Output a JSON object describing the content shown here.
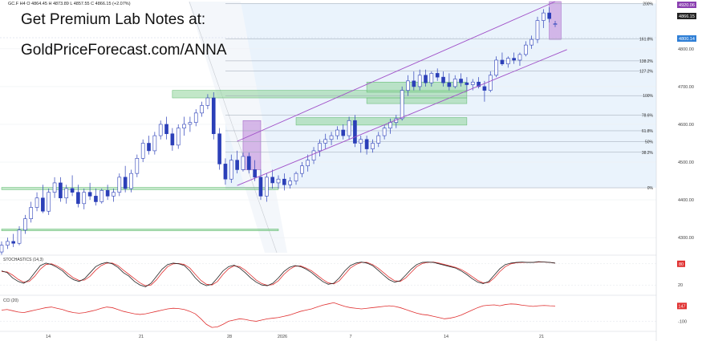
{
  "header": {
    "ohlc_text": "GC.F  H4  O 4864.45  H 4873.89  L 4857.55  C 4866.15  (+2.07%)",
    "promo_line1": "Get Premium Lab Notes at:",
    "promo_line2": "GoldPriceForecast.com/ANNA"
  },
  "colors": {
    "candle_up": "#2b3fb8",
    "candle_down": "#2b3fb8",
    "channel": "#a050c8",
    "zone_green": "#8fd49a",
    "zone_purple": "#c79be0",
    "fib_bg": "#eaf3fc",
    "stoch_k": "#222222",
    "stoch_d": "#e03030",
    "cci": "#e03030",
    "price_badge_current": "#222222",
    "price_badge_high": "#8a3fb0",
    "price_badge_level": "#2f7fd6",
    "badge_red": "#e03030"
  },
  "chart_data": {
    "type": "candlestick",
    "symbol": "GC.F",
    "timeframe": "H4",
    "x_ticks": [
      "14",
      "21",
      "28",
      "2026",
      "7",
      "14",
      "21"
    ],
    "price_axis_ticks": [
      4300,
      4400,
      4500,
      4600,
      4700,
      4800
    ],
    "price_axis_tick_labels": [
      "4300.00",
      "4400.00",
      "4500.00",
      "4600.00",
      "4700.00",
      "4800.00"
    ],
    "ylim": [
      4260,
      4925
    ],
    "price_badges": {
      "fib_top": "4920.06",
      "current": "4866.15",
      "level": "4800.14"
    },
    "fib_levels": [
      {
        "label": "200%",
        "price": 4920
      },
      {
        "label": "161.8%",
        "price": 4826
      },
      {
        "label": "138.2%",
        "price": 4768
      },
      {
        "label": "127.2%",
        "price": 4741
      },
      {
        "label": "100%",
        "price": 4676
      },
      {
        "label": "78.6%",
        "price": 4624
      },
      {
        "label": "61.8%",
        "price": 4583
      },
      {
        "label": "50%",
        "price": 4554
      },
      {
        "label": "38.2%",
        "price": 4526
      },
      {
        "label": "0%",
        "price": 4432
      }
    ],
    "candles": [
      {
        "o": 4262,
        "h": 4290,
        "l": 4255,
        "c": 4280
      },
      {
        "o": 4280,
        "h": 4300,
        "l": 4270,
        "c": 4290
      },
      {
        "o": 4290,
        "h": 4310,
        "l": 4275,
        "c": 4285
      },
      {
        "o": 4285,
        "h": 4330,
        "l": 4280,
        "c": 4320
      },
      {
        "o": 4320,
        "h": 4360,
        "l": 4310,
        "c": 4350
      },
      {
        "o": 4350,
        "h": 4395,
        "l": 4340,
        "c": 4380
      },
      {
        "o": 4380,
        "h": 4420,
        "l": 4370,
        "c": 4405
      },
      {
        "o": 4405,
        "h": 4440,
        "l": 4365,
        "c": 4370
      },
      {
        "o": 4370,
        "h": 4430,
        "l": 4360,
        "c": 4420
      },
      {
        "o": 4420,
        "h": 4460,
        "l": 4405,
        "c": 4445
      },
      {
        "o": 4445,
        "h": 4460,
        "l": 4395,
        "c": 4405
      },
      {
        "o": 4405,
        "h": 4440,
        "l": 4390,
        "c": 4430
      },
      {
        "o": 4430,
        "h": 4465,
        "l": 4410,
        "c": 4420
      },
      {
        "o": 4420,
        "h": 4440,
        "l": 4380,
        "c": 4390
      },
      {
        "o": 4390,
        "h": 4430,
        "l": 4375,
        "c": 4420
      },
      {
        "o": 4420,
        "h": 4445,
        "l": 4400,
        "c": 4410
      },
      {
        "o": 4410,
        "h": 4430,
        "l": 4385,
        "c": 4395
      },
      {
        "o": 4395,
        "h": 4430,
        "l": 4390,
        "c": 4425
      },
      {
        "o": 4425,
        "h": 4440,
        "l": 4400,
        "c": 4410
      },
      {
        "o": 4410,
        "h": 4430,
        "l": 4395,
        "c": 4420
      },
      {
        "o": 4420,
        "h": 4470,
        "l": 4410,
        "c": 4460
      },
      {
        "o": 4460,
        "h": 4490,
        "l": 4420,
        "c": 4430
      },
      {
        "o": 4430,
        "h": 4480,
        "l": 4420,
        "c": 4470
      },
      {
        "o": 4470,
        "h": 4520,
        "l": 4460,
        "c": 4510
      },
      {
        "o": 4510,
        "h": 4560,
        "l": 4500,
        "c": 4550
      },
      {
        "o": 4550,
        "h": 4570,
        "l": 4520,
        "c": 4530
      },
      {
        "o": 4530,
        "h": 4580,
        "l": 4520,
        "c": 4570
      },
      {
        "o": 4570,
        "h": 4610,
        "l": 4560,
        "c": 4600
      },
      {
        "o": 4600,
        "h": 4620,
        "l": 4560,
        "c": 4575
      },
      {
        "o": 4575,
        "h": 4590,
        "l": 4530,
        "c": 4545
      },
      {
        "o": 4545,
        "h": 4600,
        "l": 4535,
        "c": 4590
      },
      {
        "o": 4590,
        "h": 4620,
        "l": 4570,
        "c": 4600
      },
      {
        "o": 4600,
        "h": 4620,
        "l": 4580,
        "c": 4605
      },
      {
        "o": 4605,
        "h": 4640,
        "l": 4595,
        "c": 4630
      },
      {
        "o": 4630,
        "h": 4660,
        "l": 4620,
        "c": 4650
      },
      {
        "o": 4650,
        "h": 4680,
        "l": 4640,
        "c": 4670
      },
      {
        "o": 4670,
        "h": 4685,
        "l": 4560,
        "c": 4575
      },
      {
        "o": 4575,
        "h": 4590,
        "l": 4480,
        "c": 4495
      },
      {
        "o": 4495,
        "h": 4510,
        "l": 4440,
        "c": 4455
      },
      {
        "o": 4455,
        "h": 4520,
        "l": 4445,
        "c": 4505
      },
      {
        "o": 4505,
        "h": 4530,
        "l": 4470,
        "c": 4480
      },
      {
        "o": 4480,
        "h": 4525,
        "l": 4475,
        "c": 4515
      },
      {
        "o": 4515,
        "h": 4525,
        "l": 4470,
        "c": 4480
      },
      {
        "o": 4480,
        "h": 4505,
        "l": 4450,
        "c": 4460
      },
      {
        "o": 4460,
        "h": 4480,
        "l": 4400,
        "c": 4410
      },
      {
        "o": 4410,
        "h": 4470,
        "l": 4395,
        "c": 4460
      },
      {
        "o": 4460,
        "h": 4480,
        "l": 4430,
        "c": 4445
      },
      {
        "o": 4445,
        "h": 4465,
        "l": 4430,
        "c": 4455
      },
      {
        "o": 4455,
        "h": 4470,
        "l": 4425,
        "c": 4440
      },
      {
        "o": 4440,
        "h": 4460,
        "l": 4430,
        "c": 4450
      },
      {
        "o": 4450,
        "h": 4475,
        "l": 4440,
        "c": 4470
      },
      {
        "o": 4470,
        "h": 4500,
        "l": 4460,
        "c": 4490
      },
      {
        "o": 4490,
        "h": 4520,
        "l": 4475,
        "c": 4505
      },
      {
        "o": 4505,
        "h": 4540,
        "l": 4495,
        "c": 4530
      },
      {
        "o": 4530,
        "h": 4560,
        "l": 4515,
        "c": 4550
      },
      {
        "o": 4550,
        "h": 4575,
        "l": 4535,
        "c": 4560
      },
      {
        "o": 4560,
        "h": 4580,
        "l": 4545,
        "c": 4570
      },
      {
        "o": 4570,
        "h": 4595,
        "l": 4560,
        "c": 4585
      },
      {
        "o": 4585,
        "h": 4600,
        "l": 4560,
        "c": 4570
      },
      {
        "o": 4570,
        "h": 4620,
        "l": 4560,
        "c": 4610
      },
      {
        "o": 4610,
        "h": 4625,
        "l": 4540,
        "c": 4550
      },
      {
        "o": 4550,
        "h": 4570,
        "l": 4525,
        "c": 4560
      },
      {
        "o": 4560,
        "h": 4570,
        "l": 4520,
        "c": 4535
      },
      {
        "o": 4535,
        "h": 4560,
        "l": 4525,
        "c": 4550
      },
      {
        "o": 4550,
        "h": 4580,
        "l": 4540,
        "c": 4570
      },
      {
        "o": 4570,
        "h": 4600,
        "l": 4560,
        "c": 4590
      },
      {
        "o": 4590,
        "h": 4615,
        "l": 4575,
        "c": 4605
      },
      {
        "o": 4605,
        "h": 4625,
        "l": 4590,
        "c": 4615
      },
      {
        "o": 4615,
        "h": 4700,
        "l": 4610,
        "c": 4690
      },
      {
        "o": 4690,
        "h": 4730,
        "l": 4675,
        "c": 4715
      },
      {
        "o": 4715,
        "h": 4740,
        "l": 4690,
        "c": 4700
      },
      {
        "o": 4700,
        "h": 4745,
        "l": 4690,
        "c": 4730
      },
      {
        "o": 4730,
        "h": 4745,
        "l": 4700,
        "c": 4710
      },
      {
        "o": 4710,
        "h": 4740,
        "l": 4700,
        "c": 4735
      },
      {
        "o": 4735,
        "h": 4748,
        "l": 4715,
        "c": 4725
      },
      {
        "o": 4725,
        "h": 4740,
        "l": 4700,
        "c": 4710
      },
      {
        "o": 4710,
        "h": 4735,
        "l": 4690,
        "c": 4700
      },
      {
        "o": 4700,
        "h": 4730,
        "l": 4695,
        "c": 4720
      },
      {
        "o": 4720,
        "h": 4735,
        "l": 4700,
        "c": 4710
      },
      {
        "o": 4710,
        "h": 4725,
        "l": 4690,
        "c": 4705
      },
      {
        "o": 4705,
        "h": 4720,
        "l": 4690,
        "c": 4712
      },
      {
        "o": 4712,
        "h": 4725,
        "l": 4695,
        "c": 4700
      },
      {
        "o": 4700,
        "h": 4715,
        "l": 4660,
        "c": 4690
      },
      {
        "o": 4690,
        "h": 4740,
        "l": 4685,
        "c": 4730
      },
      {
        "o": 4730,
        "h": 4780,
        "l": 4725,
        "c": 4770
      },
      {
        "o": 4770,
        "h": 4790,
        "l": 4755,
        "c": 4760
      },
      {
        "o": 4760,
        "h": 4780,
        "l": 4750,
        "c": 4775
      },
      {
        "o": 4775,
        "h": 4790,
        "l": 4760,
        "c": 4770
      },
      {
        "o": 4770,
        "h": 4790,
        "l": 4755,
        "c": 4785
      },
      {
        "o": 4785,
        "h": 4820,
        "l": 4780,
        "c": 4810
      },
      {
        "o": 4810,
        "h": 4835,
        "l": 4800,
        "c": 4825
      },
      {
        "o": 4825,
        "h": 4885,
        "l": 4815,
        "c": 4875
      },
      {
        "o": 4875,
        "h": 4905,
        "l": 4855,
        "c": 4895
      },
      {
        "o": 4895,
        "h": 4910,
        "l": 4870,
        "c": 4880
      },
      {
        "o": 4864.45,
        "h": 4873.89,
        "l": 4857.55,
        "c": 4866.15
      }
    ],
    "channel_lines": [
      {
        "from": {
          "x": 40,
          "price": 4555
        },
        "to": {
          "x": 94,
          "price": 4925
        }
      },
      {
        "from": {
          "x": 40,
          "price": 4438
        },
        "to": {
          "x": 96,
          "price": 4798
        }
      }
    ],
    "demand_zones": [
      {
        "x0": 0,
        "x1": 47,
        "lo": 4427,
        "hi": 4433
      },
      {
        "x0": 0,
        "x1": 47,
        "lo": 4318,
        "hi": 4323
      },
      {
        "x0": 29,
        "x1": 79,
        "lo": 4670,
        "hi": 4690
      },
      {
        "x0": 62,
        "x1": 79,
        "lo": 4655,
        "hi": 4670
      },
      {
        "x0": 62,
        "x1": 79,
        "lo": 4685,
        "hi": 4712
      },
      {
        "x0": 50,
        "x1": 79,
        "lo": 4598,
        "hi": 4618
      }
    ],
    "highlight_boxes": [
      {
        "x0": 41,
        "x1": 44,
        "lo": 4480,
        "hi": 4610
      },
      {
        "x0": 93,
        "x1": 95,
        "lo": 4825,
        "hi": 4925
      }
    ],
    "stochastics": {
      "label": "STOCHASTICS (14,3)",
      "ylim": [
        0,
        100
      ],
      "ticks": [
        20,
        80
      ],
      "badge": "80",
      "k": [
        60,
        55,
        40,
        30,
        25,
        35,
        55,
        75,
        82,
        78,
        70,
        60,
        45,
        35,
        30,
        38,
        55,
        72,
        80,
        84,
        80,
        70,
        55,
        45,
        30,
        20,
        15,
        25,
        45,
        65,
        78,
        82,
        80,
        75,
        60,
        40,
        25,
        18,
        22,
        40,
        60,
        72,
        76,
        68,
        55,
        40,
        28,
        20,
        18,
        25,
        40,
        58,
        70,
        75,
        72,
        65,
        55,
        42,
        30,
        22,
        25,
        40,
        60,
        75,
        82,
        85,
        82,
        75,
        62,
        48,
        35,
        28,
        32,
        48,
        65,
        78,
        84,
        85,
        84,
        80,
        76,
        72,
        68,
        60,
        50,
        38,
        28,
        24,
        30,
        48,
        66,
        78,
        82,
        84,
        85,
        84,
        84,
        86,
        85,
        84,
        82
      ],
      "d": [
        58,
        57,
        48,
        36,
        28,
        30,
        45,
        65,
        78,
        80,
        74,
        65,
        52,
        40,
        33,
        34,
        45,
        62,
        75,
        82,
        82,
        75,
        62,
        50,
        38,
        26,
        18,
        20,
        35,
        55,
        72,
        80,
        81,
        78,
        68,
        50,
        33,
        22,
        20,
        30,
        50,
        66,
        74,
        72,
        62,
        48,
        34,
        24,
        19,
        21,
        32,
        50,
        64,
        73,
        74,
        68,
        60,
        48,
        36,
        26,
        23,
        32,
        50,
        68,
        78,
        84,
        84,
        78,
        68,
        55,
        42,
        32,
        30,
        40,
        56,
        72,
        81,
        84,
        85,
        82,
        78,
        74,
        70,
        64,
        55,
        44,
        33,
        26,
        27,
        40,
        58,
        72,
        80,
        83,
        84,
        84,
        84,
        85,
        85,
        84,
        82
      ]
    },
    "cci": {
      "label": "CCI (20)",
      "ticks": [
        -100
      ],
      "badge": "147",
      "ylim": [
        -250,
        320
      ],
      "values": [
        80,
        90,
        70,
        50,
        40,
        60,
        80,
        100,
        120,
        130,
        110,
        90,
        60,
        40,
        30,
        40,
        60,
        80,
        110,
        130,
        120,
        90,
        60,
        40,
        20,
        10,
        20,
        40,
        60,
        80,
        100,
        110,
        105,
        90,
        60,
        20,
        -60,
        -150,
        -200,
        -190,
        -150,
        -100,
        -80,
        -60,
        -70,
        -90,
        -100,
        -80,
        -60,
        -50,
        -40,
        -20,
        0,
        30,
        60,
        80,
        100,
        130,
        160,
        180,
        200,
        170,
        140,
        120,
        110,
        100,
        110,
        120,
        130,
        140,
        150,
        140,
        120,
        90,
        60,
        30,
        10,
        0,
        -20,
        -40,
        -60,
        -50,
        -30,
        0,
        40,
        80,
        120,
        150,
        160,
        165,
        150,
        170,
        180,
        175,
        160,
        150,
        140,
        150,
        155,
        150,
        147
      ]
    }
  }
}
